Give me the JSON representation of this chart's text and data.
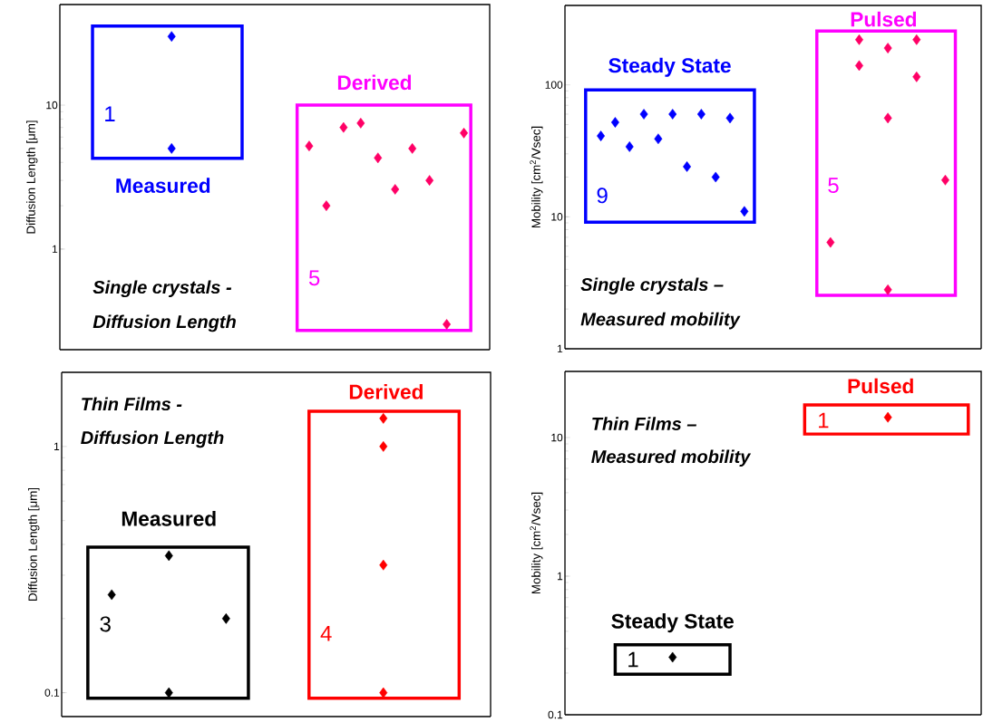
{
  "chart_data": [
    {
      "type": "scatter",
      "log": "y",
      "marker": "diamond",
      "tick_labels": "y",
      "ylabel": "Diffusion Length [μm]",
      "ylim": [
        0.2,
        50
      ],
      "yticks": [
        1,
        10
      ],
      "categories": [
        null,
        null,
        null,
        null,
        null,
        null,
        null,
        null,
        null,
        null,
        null,
        null,
        null,
        null,
        null,
        null,
        null,
        null,
        null,
        null,
        null,
        null,
        null,
        null,
        null
      ],
      "series": [
        {
          "color": "#0000ff",
          "values": [
            null,
            null,
            null,
            null,
            null,
            null,
            30,
            null,
            null,
            null,
            null,
            null,
            null,
            null,
            null,
            null,
            null,
            null,
            null,
            null,
            null,
            null,
            null,
            null,
            null
          ]
        },
        {
          "color": "#0000ff",
          "values": [
            null,
            null,
            null,
            null,
            null,
            null,
            5.0,
            null,
            null,
            null,
            null,
            null,
            null,
            null,
            null,
            null,
            null,
            null,
            null,
            null,
            null,
            null,
            null,
            null,
            null
          ]
        },
        {
          "color": "#ff0066",
          "values": [
            null,
            null,
            null,
            null,
            null,
            null,
            null,
            null,
            null,
            null,
            null,
            null,
            null,
            null,
            5.2,
            2.0,
            7.0,
            7.5,
            4.3,
            2.6,
            5.0,
            3.0,
            0.3,
            6.4,
            null
          ]
        }
      ],
      "annotations": [
        "1",
        "Measured",
        "Derived",
        "5",
        "Single crystals  -",
        "Diffusion Length"
      ]
    },
    {
      "type": "scatter",
      "log": "y",
      "marker": "diamond",
      "tick_labels": "y",
      "ylabel": "Mobility [cm$^{2}$/Vsec]",
      "ylim": [
        1,
        400
      ],
      "yticks": [
        1,
        10,
        100
      ],
      "categories": [
        null,
        null,
        null,
        null,
        null,
        null,
        null,
        null,
        null,
        null,
        null,
        null,
        null,
        null,
        null,
        null,
        null,
        null,
        null,
        null,
        null,
        null,
        null,
        null,
        null,
        null,
        null,
        null,
        null
      ],
      "series": [
        {
          "color": "#0000ff",
          "values": [
            null,
            null,
            41,
            52,
            34,
            60,
            39,
            60,
            24,
            60,
            20,
            56,
            11,
            null,
            null,
            null,
            null,
            null,
            null,
            null,
            null,
            null,
            null,
            null,
            null,
            null,
            null,
            null,
            null
          ]
        },
        {
          "color": "#ff0066",
          "values": [
            null,
            null,
            null,
            null,
            null,
            null,
            null,
            null,
            null,
            null,
            null,
            null,
            null,
            null,
            null,
            null,
            null,
            null,
            6.4,
            null,
            220,
            null,
            190,
            null,
            220,
            null,
            19,
            null,
            null
          ]
        },
        {
          "color": "#ff0066",
          "values": [
            null,
            null,
            null,
            null,
            null,
            null,
            null,
            null,
            null,
            null,
            null,
            null,
            null,
            null,
            null,
            null,
            null,
            null,
            null,
            null,
            140,
            null,
            56,
            null,
            115,
            null,
            null,
            null,
            null
          ]
        },
        {
          "color": "#ff0066",
          "values": [
            null,
            null,
            null,
            null,
            null,
            null,
            null,
            null,
            null,
            null,
            null,
            null,
            null,
            null,
            null,
            null,
            null,
            null,
            null,
            null,
            null,
            null,
            2.8,
            null,
            null,
            null,
            null,
            null,
            null
          ]
        }
      ],
      "annotations": [
        "Steady State",
        "9",
        "Pulsed",
        "5",
        "Single crystals –",
        "Measured mobility"
      ]
    },
    {
      "type": "scatter",
      "log": "y",
      "marker": "diamond",
      "tick_labels": "y",
      "ylabel": "Diffusion Length [μm]",
      "ylim": [
        0.08,
        2
      ],
      "yticks": [
        0.1,
        1
      ],
      "categories": [
        null,
        null,
        null,
        null,
        null,
        null,
        null,
        null,
        null,
        null,
        null,
        null,
        null,
        null,
        null,
        null,
        null,
        null,
        null,
        null,
        null,
        null,
        null,
        null,
        null,
        null,
        null,
        null,
        null,
        null
      ],
      "series": [
        {
          "color": "#000000",
          "values": [
            null,
            null,
            null,
            0.25,
            null,
            null,
            null,
            0.36,
            null,
            null,
            null,
            0.2,
            null,
            null,
            null,
            null,
            null,
            null,
            null,
            null,
            null,
            null,
            null,
            null,
            null,
            null,
            null,
            null,
            null,
            null
          ]
        },
        {
          "color": "#000000",
          "values": [
            null,
            null,
            null,
            null,
            null,
            null,
            null,
            0.1,
            null,
            null,
            null,
            null,
            null,
            null,
            null,
            null,
            null,
            null,
            null,
            null,
            null,
            null,
            null,
            null,
            null,
            null,
            null,
            null,
            null,
            null
          ]
        },
        {
          "color": "#ff0000",
          "values": [
            null,
            null,
            null,
            null,
            null,
            null,
            null,
            null,
            null,
            null,
            null,
            null,
            null,
            null,
            null,
            null,
            null,
            null,
            null,
            null,
            null,
            null,
            1.3,
            null,
            null,
            null,
            null,
            null,
            null,
            null
          ]
        },
        {
          "color": "#ff0000",
          "values": [
            null,
            null,
            null,
            null,
            null,
            null,
            null,
            null,
            null,
            null,
            null,
            null,
            null,
            null,
            null,
            null,
            null,
            null,
            null,
            null,
            null,
            null,
            1.0,
            null,
            null,
            null,
            null,
            null,
            null,
            null
          ]
        },
        {
          "color": "#ff0000",
          "values": [
            null,
            null,
            null,
            null,
            null,
            null,
            null,
            null,
            null,
            null,
            null,
            null,
            null,
            null,
            null,
            null,
            null,
            null,
            null,
            null,
            null,
            null,
            0.33,
            null,
            null,
            null,
            null,
            null,
            null,
            null
          ]
        },
        {
          "color": "#ff0000",
          "values": [
            null,
            null,
            null,
            null,
            null,
            null,
            null,
            null,
            null,
            null,
            null,
            null,
            null,
            null,
            null,
            null,
            null,
            null,
            null,
            null,
            null,
            null,
            0.1,
            null,
            null,
            null,
            null,
            null,
            null,
            null
          ]
        }
      ],
      "annotations": [
        "Thin Films -",
        "Diffusion Length",
        "Measured",
        "3",
        "Derived",
        "4"
      ]
    },
    {
      "type": "scatter",
      "log": "y",
      "marker": "diamond",
      "tick_labels": "y",
      "ylabel": "Mobility [cm$^{2}$/Vsec]",
      "ylim": [
        0.1,
        30
      ],
      "yticks": [
        0.1,
        1,
        10
      ],
      "categories": [
        null,
        null,
        null,
        null,
        null,
        null,
        null,
        null,
        null,
        null,
        null,
        null,
        null,
        null,
        null,
        null,
        null,
        null,
        null,
        null,
        null,
        null,
        null,
        null,
        null,
        null,
        null,
        null,
        null
      ],
      "series": [
        {
          "color": "#000000",
          "values": [
            null,
            null,
            null,
            null,
            null,
            null,
            null,
            0.26,
            null,
            null,
            null,
            null,
            null,
            null,
            null,
            null,
            null,
            null,
            null,
            null,
            null,
            null,
            null,
            null,
            null,
            null,
            null,
            null,
            null
          ]
        },
        {
          "color": "#ff0000",
          "values": [
            null,
            null,
            null,
            null,
            null,
            null,
            null,
            null,
            null,
            null,
            null,
            null,
            null,
            null,
            null,
            null,
            null,
            null,
            null,
            null,
            null,
            null,
            14,
            null,
            null,
            null,
            null,
            null,
            null
          ]
        }
      ],
      "annotations": [
        "Pulsed",
        "1",
        "Thin Films –",
        "Measured mobility",
        "Steady State",
        "1"
      ]
    }
  ]
}
